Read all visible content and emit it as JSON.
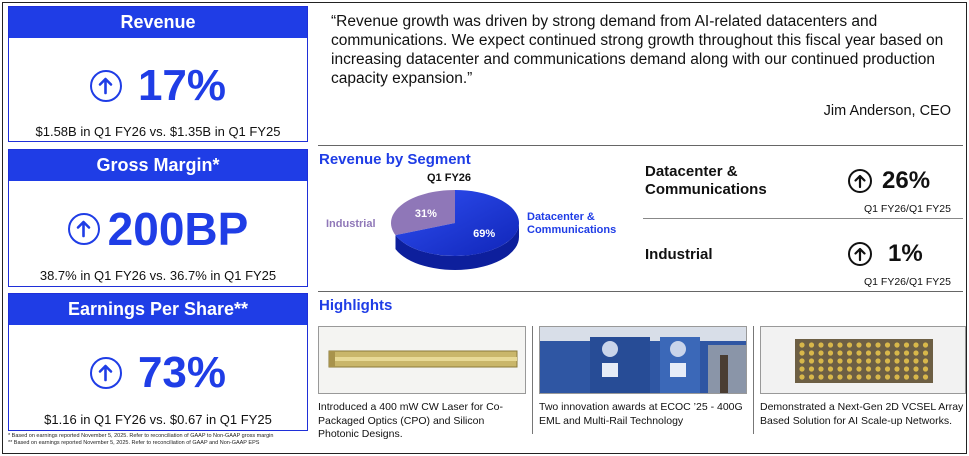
{
  "colors": {
    "accent": "#1f3de6",
    "industrial": "#8f77b8",
    "text": "#111111"
  },
  "cards": [
    {
      "title": "Revenue",
      "icon": "arrow-up-circle-icon",
      "value": "17%",
      "detail": "$1.58B in Q1 FY26 vs. $1.35B in Q1 FY25"
    },
    {
      "title": "Gross Margin*",
      "icon": "arrow-up-circle-icon",
      "value": "200BP",
      "detail": "38.7% in Q1 FY26 vs. 36.7% in Q1 FY25"
    },
    {
      "title": "Earnings Per Share**",
      "icon": "arrow-up-circle-icon",
      "value": "73%",
      "detail": "$1.16 in Q1 FY26 vs. $0.67 in Q1 FY25"
    }
  ],
  "footnotes": [
    "*  Based on earnings reported November 5, 2025. Refer to reconciliation of GAAP to Non-GAAP gross margin",
    "** Based on earnings reported November 5, 2025. Refer to reconciliation of GAAP and Non-GAAP EPS"
  ],
  "quote": {
    "text": "“Revenue growth was driven by strong demand from AI-related datacenters and communications. We expect continued strong growth throughout this fiscal year based on increasing datacenter and communications demand along with our continued production capacity expansion.”",
    "author": "Jim Anderson, CEO"
  },
  "segment": {
    "title": "Revenue by Segment",
    "chart_data": {
      "type": "pie",
      "title": "Q1 FY26",
      "categories": [
        "Datacenter & Communications",
        "Industrial"
      ],
      "values": [
        69,
        31
      ],
      "value_labels": [
        "69%",
        "31%"
      ],
      "label_datacenter_1": "Datacenter &",
      "label_datacenter_2": "Communications",
      "label_industrial": "Industrial"
    },
    "rows": [
      {
        "name_line1": "Datacenter &",
        "name_line2": "Communications",
        "growth": "26%",
        "period": "Q1 FY26/Q1 FY25"
      },
      {
        "name_line1": "Industrial",
        "name_line2": "",
        "growth": "1%",
        "period": "Q1 FY26/Q1 FY25"
      }
    ]
  },
  "highlights": {
    "title": "Highlights",
    "items": [
      {
        "line1": "Introduced a 400 mW CW Laser for Co-",
        "line2": "Packaged Optics (CPO) and Silicon",
        "line3": "Photonic Designs."
      },
      {
        "line1": "Two innovation awards at ECOC ’25 - 400G",
        "line2": "EML and Multi-Rail Technology",
        "line3": ""
      },
      {
        "line1": "Demonstrated a Next-Gen 2D VCSEL Array",
        "line2": "Based Solution for AI Scale-up Networks.",
        "line3": ""
      }
    ]
  }
}
